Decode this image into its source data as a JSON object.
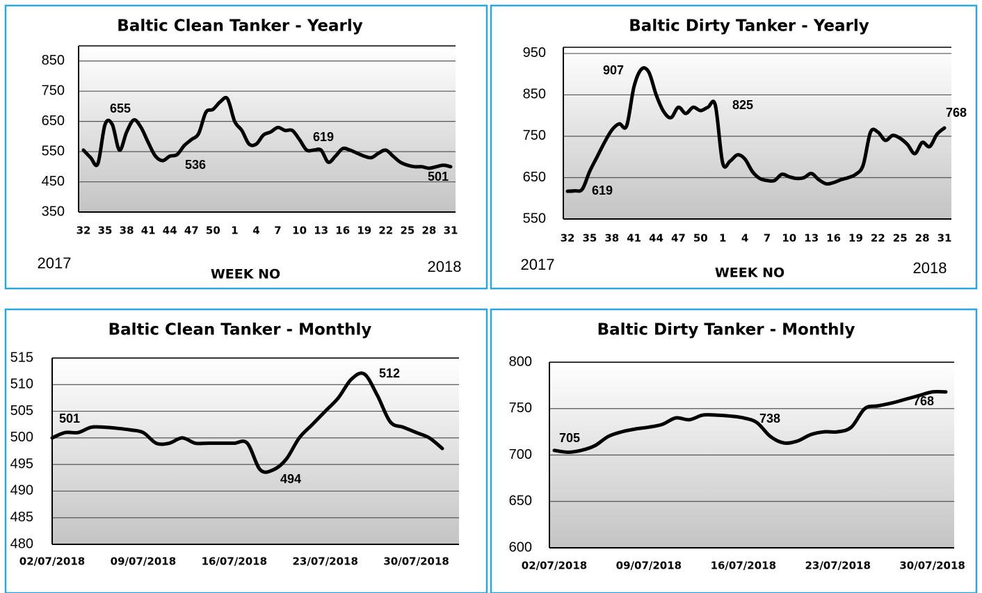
{
  "chart_data": [
    {
      "type": "line",
      "title": "Baltic Clean Tanker - Yearly",
      "xlabel": "WEEK NO",
      "year_start": "2017",
      "year_end": "2018",
      "categories": [
        32,
        null,
        null,
        35,
        null,
        null,
        38,
        null,
        null,
        41,
        null,
        null,
        44,
        null,
        null,
        47,
        null,
        null,
        50,
        null,
        null,
        1,
        null,
        null,
        4,
        null,
        null,
        7,
        null,
        null,
        10,
        null,
        null,
        13,
        null,
        null,
        16,
        null,
        null,
        19,
        null,
        null,
        22,
        null,
        null,
        25,
        null,
        null,
        28,
        null,
        null,
        31
      ],
      "values": [
        555,
        530,
        510,
        640,
        640,
        555,
        615,
        655,
        630,
        580,
        535,
        520,
        535,
        540,
        570,
        590,
        610,
        680,
        690,
        715,
        725,
        650,
        620,
        575,
        575,
        605,
        615,
        630,
        620,
        620,
        590,
        555,
        555,
        555,
        515,
        535,
        560,
        555,
        545,
        535,
        530,
        545,
        555,
        535,
        515,
        505,
        500,
        500,
        495,
        500,
        505,
        500
      ],
      "color": "#000000",
      "ylim": [
        350,
        900
      ],
      "yticks": [
        350,
        450,
        550,
        650,
        750,
        850
      ],
      "grid": true,
      "annotations": [
        "655",
        "536",
        "619",
        "501"
      ]
    },
    {
      "type": "line",
      "title": "Baltic Dirty Tanker - Yearly",
      "xlabel": "WEEK NO",
      "year_start": "2017",
      "year_end": "2018",
      "categories": [
        32,
        null,
        null,
        35,
        null,
        null,
        38,
        null,
        null,
        41,
        null,
        null,
        44,
        null,
        null,
        47,
        null,
        null,
        50,
        null,
        null,
        1,
        null,
        null,
        4,
        null,
        null,
        7,
        null,
        null,
        10,
        null,
        null,
        13,
        null,
        null,
        16,
        null,
        null,
        19,
        null,
        null,
        22,
        null,
        null,
        25,
        null,
        null,
        28,
        null,
        null,
        31
      ],
      "values": [
        617,
        618,
        622,
        665,
        700,
        735,
        765,
        780,
        775,
        870,
        912,
        905,
        850,
        810,
        795,
        820,
        805,
        820,
        812,
        820,
        825,
        685,
        690,
        705,
        695,
        665,
        648,
        643,
        643,
        658,
        652,
        648,
        650,
        660,
        645,
        635,
        638,
        645,
        650,
        658,
        680,
        760,
        760,
        740,
        752,
        745,
        730,
        708,
        735,
        725,
        755,
        770
      ],
      "color": "#000000",
      "ylim": [
        550,
        965
      ],
      "yticks": [
        550,
        650,
        750,
        850,
        950
      ],
      "grid": true,
      "annotations": [
        "907",
        "619",
        "825",
        "768"
      ]
    },
    {
      "type": "line",
      "title": "Baltic Clean Tanker - Monthly",
      "categories": [
        "02/07/2018",
        null,
        null,
        null,
        null,
        null,
        null,
        "09/07/2018",
        null,
        null,
        null,
        null,
        null,
        null,
        "16/07/2018",
        null,
        null,
        null,
        null,
        null,
        null,
        "23/07/2018",
        null,
        null,
        null,
        null,
        null,
        null,
        "30/07/2018",
        null,
        null
      ],
      "values": [
        500,
        501,
        501,
        502,
        502,
        501.8,
        501.5,
        501,
        499,
        499,
        500,
        499,
        499,
        499,
        499,
        499,
        494,
        494,
        496,
        500,
        502.5,
        505,
        507.5,
        511,
        512,
        508,
        503,
        502,
        501,
        500,
        498
      ],
      "color": "#000000",
      "ylim": [
        480,
        515
      ],
      "yticks": [
        480,
        485,
        490,
        495,
        500,
        505,
        510,
        515
      ],
      "grid": true,
      "annotations": [
        "501",
        "494",
        "512"
      ]
    },
    {
      "type": "line",
      "title": "Baltic Dirty Tanker - Monthly",
      "categories": [
        "02/07/2018",
        null,
        null,
        null,
        null,
        null,
        null,
        "09/07/2018",
        null,
        null,
        null,
        null,
        null,
        null,
        "16/07/2018",
        null,
        null,
        null,
        null,
        null,
        null,
        "23/07/2018",
        null,
        null,
        null,
        null,
        null,
        null,
        "30/07/2018",
        null
      ],
      "values": [
        705,
        703,
        705,
        710,
        720,
        725,
        728,
        730,
        733,
        740,
        738,
        743,
        743,
        742,
        740,
        735,
        720,
        713,
        715,
        722,
        725,
        725,
        730,
        750,
        753,
        756,
        760,
        764,
        768,
        768
      ],
      "color": "#000000",
      "ylim": [
        600,
        800
      ],
      "yticks": [
        600,
        650,
        700,
        750,
        800
      ],
      "grid": true,
      "annotations": [
        "705",
        "738",
        "768"
      ]
    }
  ]
}
